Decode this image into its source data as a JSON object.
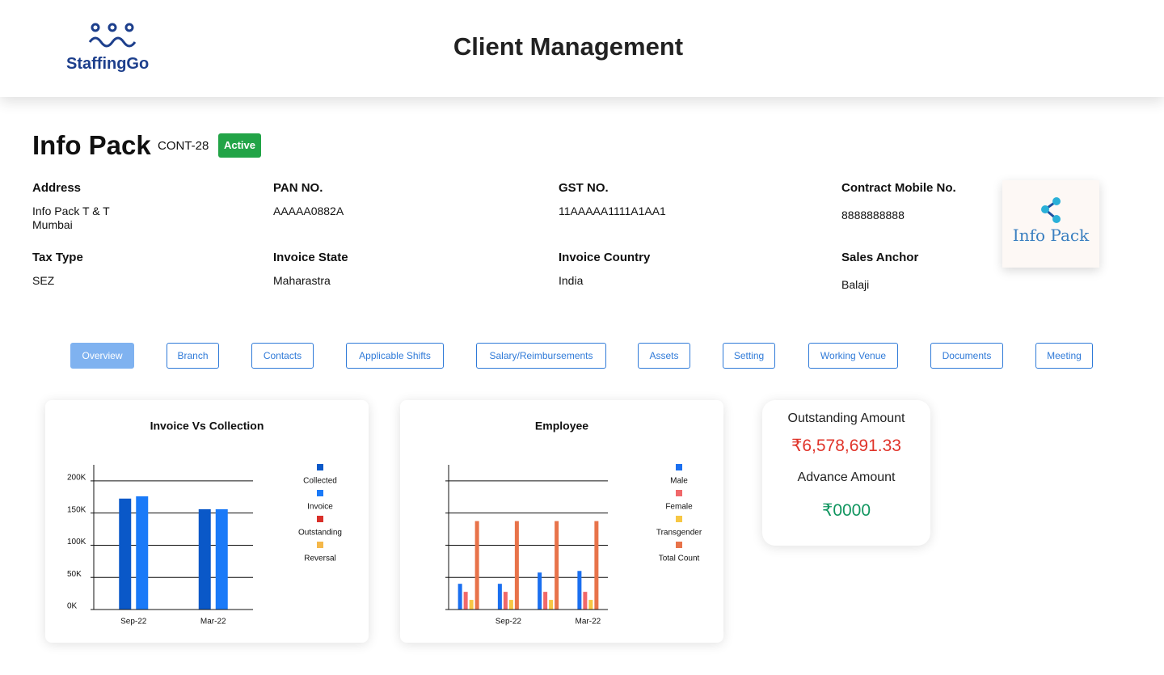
{
  "header": {
    "logo_text": "StaffingGo",
    "title": "Client Management"
  },
  "client": {
    "name": "Info Pack",
    "code": "CONT-28",
    "status": "Active",
    "logo_text": "Info Pack",
    "fields": [
      {
        "label": "Address",
        "lines": [
          "Info Pack T & T",
          "Mumbai"
        ]
      },
      {
        "label": "PAN NO.",
        "lines": [
          "AAAAA0882A"
        ]
      },
      {
        "label": "GST NO.",
        "lines": [
          "11AAAAA1111A1AA1"
        ]
      },
      {
        "label": "Contract Mobile No.",
        "lines": [
          "8888888888"
        ]
      },
      {
        "label": "Tax Type",
        "lines": [
          "SEZ"
        ]
      },
      {
        "label": "Invoice State",
        "lines": [
          "Maharastra"
        ]
      },
      {
        "label": "Invoice Country",
        "lines": [
          "India"
        ]
      },
      {
        "label": "Sales Anchor",
        "lines": [
          "Balaji"
        ]
      }
    ]
  },
  "tabs": [
    "Overview",
    "Branch",
    "Contacts",
    "Applicable Shifts",
    "Salary/Reimbursements",
    "Assets",
    "Setting",
    "Working Venue",
    "Documents",
    "Meeting"
  ],
  "chart_data": [
    {
      "type": "bar",
      "title": "Invoice  Vs Collection",
      "categories": [
        "Sep-22",
        "Mar-22"
      ],
      "series": [
        {
          "name": "Collected",
          "color": "#0a58c8",
          "values": [
            172500,
            156000
          ]
        },
        {
          "name": "Invoice",
          "color": "#1a7af8",
          "values": [
            176000,
            156000
          ]
        },
        {
          "name": "Outstanding",
          "color": "#d9302a",
          "values": [
            null,
            null
          ]
        },
        {
          "name": "Reversal",
          "color": "#f5b84a",
          "values": [
            null,
            null
          ]
        }
      ],
      "ylim": [
        0,
        225000
      ],
      "tick_labels": true,
      "grid": true,
      "yticks": [
        {
          "value": 0,
          "label": "0K"
        },
        {
          "value": 50000,
          "label": "50K"
        },
        {
          "value": 100000,
          "label": "100K"
        },
        {
          "value": 150000,
          "label": "150K"
        },
        {
          "value": 200000,
          "label": "200K"
        }
      ]
    },
    {
      "type": "bar",
      "title": "Employee",
      "categories": [
        null,
        "Sep-22",
        null,
        "Mar-22"
      ],
      "series": [
        {
          "name": "Male",
          "color": "#1a6ff0",
          "values": [
            8,
            8,
            11.5,
            12
          ]
        },
        {
          "name": "Female",
          "color": "#f0686a",
          "values": [
            5.5,
            5.5,
            5.5,
            5.5
          ]
        },
        {
          "name": "Transgender",
          "color": "#f7c744",
          "values": [
            3,
            3,
            3,
            3
          ]
        },
        {
          "name": "Total Count",
          "color": "#e8734a",
          "values": [
            27.5,
            27.5,
            27.5,
            27.5
          ]
        }
      ],
      "ylim": [
        0,
        45
      ],
      "tick_labels": false,
      "grid": true,
      "yticks": [
        0,
        10,
        20,
        30,
        40
      ]
    }
  ],
  "summary": {
    "outstanding_label": "Outstanding Amount",
    "outstanding_value": "₹6,578,691.33",
    "advance_label": "Advance Amount",
    "advance_value": "₹0000"
  }
}
